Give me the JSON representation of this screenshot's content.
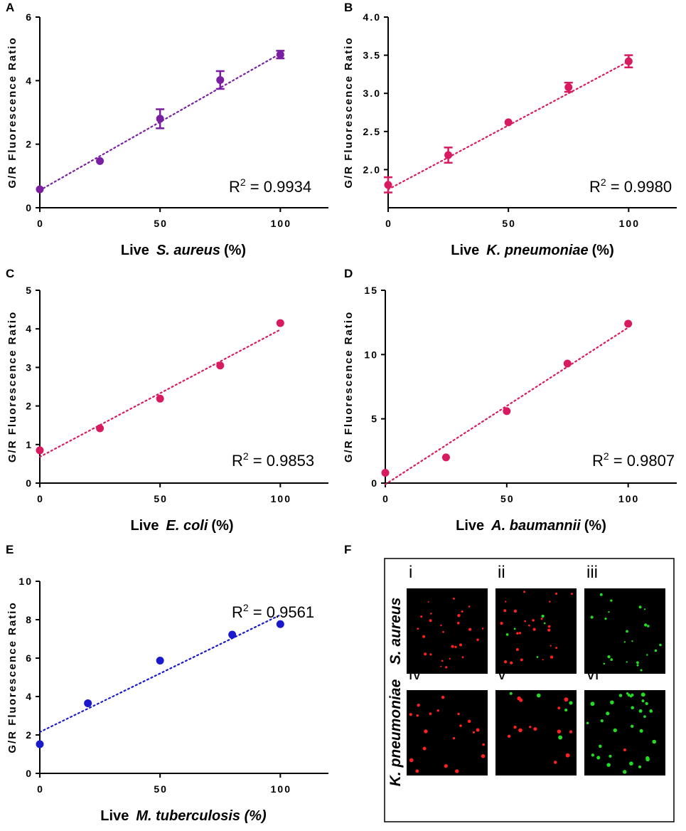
{
  "chart_data": [
    {
      "panel": "A",
      "type": "scatter",
      "color": "#7b1fa2",
      "ylabel": "G/R Fluorescence Ratio",
      "xlabel": {
        "pre": "Live",
        "species": "S. aureus",
        "post": "(%)"
      },
      "xlim": [
        0,
        120
      ],
      "ylim": [
        0,
        6
      ],
      "xticks": [
        0,
        50,
        100
      ],
      "xtick_labels": [
        "0",
        "50",
        "100"
      ],
      "yticks": [
        0,
        2,
        4,
        6
      ],
      "ytick_labels": [
        "0",
        "2",
        "4",
        "6"
      ],
      "x": [
        0,
        25,
        50,
        75,
        100
      ],
      "y": [
        0.58,
        1.47,
        2.8,
        4.02,
        4.82
      ],
      "err": [
        0,
        0,
        0.3,
        0.28,
        0.12
      ],
      "fit": {
        "x": [
          0,
          100
        ],
        "y": [
          0.55,
          4.85
        ]
      },
      "r2": "0.9934"
    },
    {
      "panel": "B",
      "type": "scatter",
      "color": "#d81b60",
      "ylabel": "G/R Fluorescence Ratio",
      "xlabel": {
        "pre": "Live",
        "species": "K. pneumoniae",
        "post": "(%)"
      },
      "xlim": [
        0,
        120
      ],
      "ylim": [
        1.5,
        4.0
      ],
      "xticks": [
        0,
        50,
        100
      ],
      "xtick_labels": [
        "0",
        "50",
        "100"
      ],
      "yticks": [
        2.0,
        2.5,
        3.0,
        3.5,
        4.0
      ],
      "ytick_labels": [
        "2.0",
        "2.5",
        "3.0",
        "3.5",
        "4.0"
      ],
      "x": [
        0,
        25,
        50,
        75,
        100
      ],
      "y": [
        1.8,
        2.19,
        2.62,
        3.08,
        3.42
      ],
      "err": [
        0.1,
        0.1,
        0,
        0.06,
        0.08
      ],
      "fit": {
        "x": [
          0,
          100
        ],
        "y": [
          1.74,
          3.42
        ]
      },
      "r2": "0.9980"
    },
    {
      "panel": "C",
      "type": "scatter",
      "color": "#d81b60",
      "ylabel": "G/R Fluorescence Ratio",
      "xlabel": {
        "pre": "Live",
        "species": "E. coli",
        "post": "(%)"
      },
      "xlim": [
        0,
        120
      ],
      "ylim": [
        0,
        5
      ],
      "xticks": [
        0,
        50,
        100
      ],
      "xtick_labels": [
        "0",
        "50",
        "100"
      ],
      "yticks": [
        0,
        1,
        2,
        3,
        4,
        5
      ],
      "ytick_labels": [
        "0",
        "1",
        "2",
        "3",
        "4",
        "5"
      ],
      "x": [
        0,
        25,
        50,
        75,
        100
      ],
      "y": [
        0.85,
        1.42,
        2.19,
        3.05,
        4.15
      ],
      "err": [
        0,
        0,
        0,
        0,
        0
      ],
      "fit": {
        "x": [
          0,
          100
        ],
        "y": [
          0.68,
          3.98
        ]
      },
      "r2": "0.9853"
    },
    {
      "panel": "D",
      "type": "scatter",
      "color": "#d81b60",
      "ylabel": "G/R Fluorescence Ratio",
      "xlabel": {
        "pre": "Live",
        "species": "A. baumannii",
        "post": "(%)"
      },
      "xlim": [
        0,
        120
      ],
      "ylim": [
        0,
        15
      ],
      "xticks": [
        0,
        50,
        100
      ],
      "xtick_labels": [
        "0",
        "50",
        "100"
      ],
      "yticks": [
        0,
        5,
        10,
        15
      ],
      "ytick_labels": [
        "0",
        "5",
        "10",
        "15"
      ],
      "x": [
        0,
        25,
        50,
        75,
        100
      ],
      "y": [
        0.8,
        2.0,
        5.6,
        9.3,
        12.4
      ],
      "err": [
        0,
        0,
        0,
        0,
        0
      ],
      "fit": {
        "x": [
          0,
          100
        ],
        "y": [
          -0.1,
          12.1
        ]
      },
      "r2": "0.9807"
    },
    {
      "panel": "E",
      "type": "scatter",
      "color": "#1a1acc",
      "ylabel": "G/R Fluorescence Ratio",
      "xlabel": {
        "pre": "Live",
        "species": "M. tuberculosis (%)",
        "post": ""
      },
      "xlim": [
        0,
        120
      ],
      "ylim": [
        0,
        10
      ],
      "xticks": [
        0,
        50,
        100
      ],
      "xtick_labels": [
        "0",
        "50",
        "100"
      ],
      "yticks": [
        0,
        2,
        4,
        6,
        8,
        10
      ],
      "ytick_labels": [
        "0",
        "2",
        "4",
        "6",
        "8",
        "10"
      ],
      "x": [
        0,
        20,
        50,
        80,
        100
      ],
      "y": [
        1.52,
        3.65,
        5.87,
        7.22,
        7.77
      ],
      "err": [
        0,
        0,
        0,
        0,
        0
      ],
      "fit": {
        "x": [
          0,
          100
        ],
        "y": [
          2.15,
          8.25
        ]
      },
      "r2": "0.9561"
    }
  ],
  "r2_prefix": "R",
  "r2_exp": "2",
  "r2_eq": " = ",
  "panel_f": {
    "letter": "F",
    "rows": [
      {
        "label": "S. aureus",
        "images": [
          "i",
          "ii",
          "iii"
        ]
      },
      {
        "label": "K. pneumoniae",
        "images": [
          "iv",
          "v",
          "vi"
        ]
      }
    ],
    "colors": {
      "red": "#ff2020",
      "green": "#22dd22",
      "bg": "#000000"
    }
  }
}
